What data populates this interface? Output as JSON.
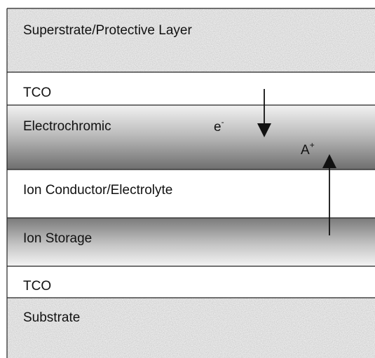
{
  "layers": [
    {
      "label": "Superstrate/Protective Layer"
    },
    {
      "label": "TCO"
    },
    {
      "label": "Electrochromic"
    },
    {
      "label": "Ion Conductor/Electrolyte"
    },
    {
      "label": "Ion Storage"
    },
    {
      "label": "TCO"
    },
    {
      "label": "Substrate"
    }
  ],
  "charges": [
    {
      "symbol": "e",
      "sup": "-"
    },
    {
      "symbol": "A",
      "sup": "+"
    }
  ]
}
